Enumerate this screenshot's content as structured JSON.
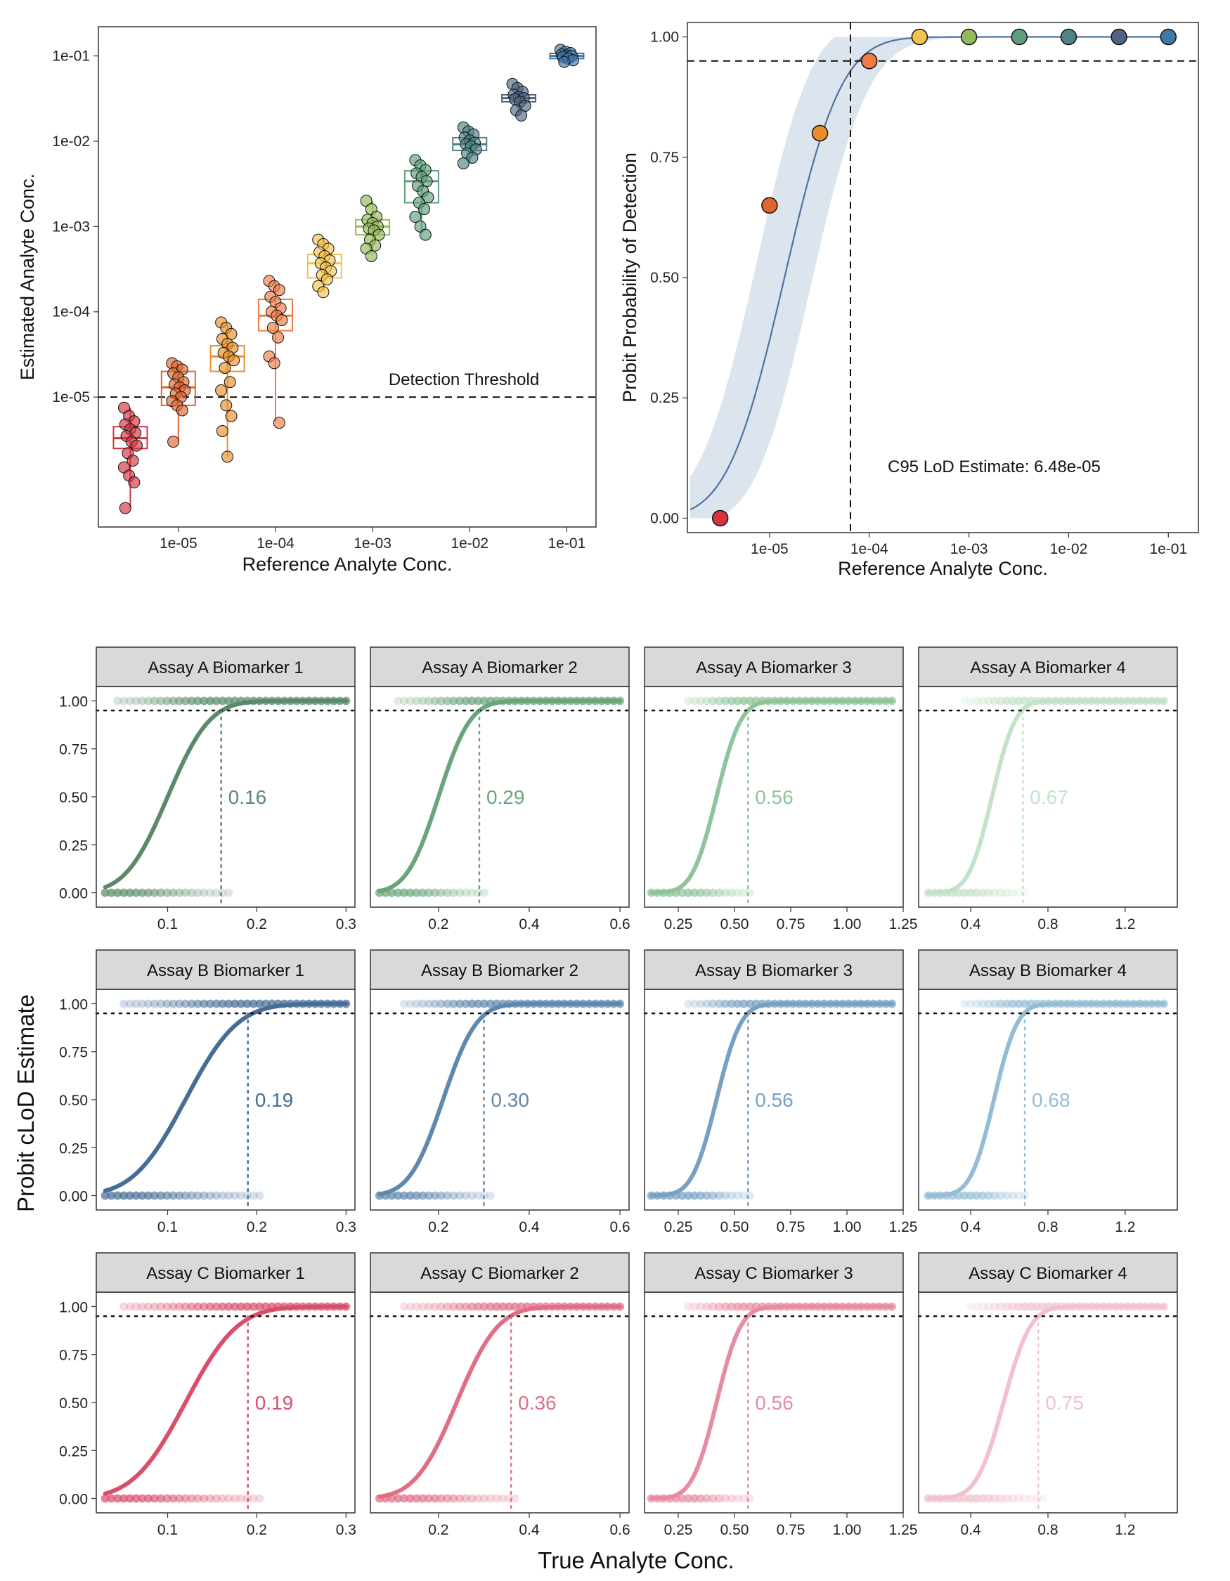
{
  "chart_data": [
    {
      "type": "box",
      "id": "panel-top-left",
      "xlabel": "Reference Analyte Conc.",
      "ylabel": "Estimated Analyte Conc.",
      "x_scale": "log10",
      "y_scale": "log10",
      "xlim": [
        1.5e-06,
        0.2
      ],
      "ylim": [
        3e-07,
        0.22
      ],
      "x_ticks": [
        "1e-05",
        "1e-04",
        "1e-03",
        "1e-02",
        "1e-01"
      ],
      "y_ticks": [
        "1e-05",
        "1e-04",
        "1e-03",
        "1e-02",
        "1e-01"
      ],
      "threshold": {
        "value": 1e-05,
        "label": "Detection Threshold"
      },
      "groups": [
        {
          "x": 3.2e-06,
          "q1": 2.5e-06,
          "median": 3.3e-06,
          "q3": 4.5e-06,
          "lo": 5e-07,
          "hi": 7.5e-06,
          "color": "#d4333f",
          "points": [
            7.5e-06,
            6e-06,
            5.2e-06,
            4.8e-06,
            4.2e-06,
            3.8e-06,
            3.5e-06,
            3e-06,
            2.7e-06,
            2.2e-06,
            1.8e-06,
            1.5e-06,
            1.2e-06,
            1e-06,
            5e-07
          ]
        },
        {
          "x": 1e-05,
          "q1": 8e-06,
          "median": 1.3e-05,
          "q3": 2e-05,
          "lo": 3e-06,
          "hi": 2.5e-05,
          "color": "#e06530",
          "points": [
            2.5e-05,
            2.3e-05,
            2.1e-05,
            1.9e-05,
            1.7e-05,
            1.5e-05,
            1.4e-05,
            1.3e-05,
            1.2e-05,
            1.1e-05,
            1e-05,
            9e-06,
            8e-06,
            7e-06,
            3e-06
          ]
        },
        {
          "x": 3.2e-05,
          "q1": 2e-05,
          "median": 3e-05,
          "q3": 4e-05,
          "lo": 2e-06,
          "hi": 7.5e-05,
          "color": "#e88f2a",
          "points": [
            7.5e-05,
            6.5e-05,
            5.5e-05,
            4.8e-05,
            4.2e-05,
            3.8e-05,
            3.3e-05,
            3e-05,
            2.7e-05,
            2.2e-05,
            1.5e-05,
            1.2e-05,
            8e-06,
            6e-06,
            4e-06,
            2e-06
          ]
        },
        {
          "x": 0.0001,
          "q1": 6e-05,
          "median": 9e-05,
          "q3": 0.00014,
          "lo": 5e-06,
          "hi": 0.00023,
          "color": "#ef7c45",
          "points": [
            0.00023,
            0.0002,
            0.00018,
            0.00015,
            0.00013,
            0.00011,
            0.0001,
            9e-05,
            8e-05,
            6.5e-05,
            5e-05,
            3e-05,
            2.5e-05,
            5e-06
          ]
        },
        {
          "x": 0.00032,
          "q1": 0.00025,
          "median": 0.00037,
          "q3": 0.00047,
          "lo": 0.00017,
          "hi": 0.0007,
          "color": "#f2c14e",
          "points": [
            0.0007,
            0.00062,
            0.00055,
            0.0005,
            0.00045,
            0.0004,
            0.00037,
            0.00033,
            0.0003,
            0.00027,
            0.00024,
            0.0002,
            0.00017
          ]
        },
        {
          "x": 0.001,
          "q1": 0.0008,
          "median": 0.001,
          "q3": 0.0012,
          "lo": 0.00045,
          "hi": 0.002,
          "color": "#93ba5a",
          "points": [
            0.002,
            0.0016,
            0.0013,
            0.0012,
            0.0011,
            0.001,
            0.00095,
            0.0009,
            0.0008,
            0.0007,
            0.0006,
            0.00055,
            0.00045
          ]
        },
        {
          "x": 0.0032,
          "q1": 0.0019,
          "median": 0.0034,
          "q3": 0.0045,
          "lo": 0.0008,
          "hi": 0.006,
          "color": "#5e9e7a",
          "points": [
            0.006,
            0.0052,
            0.0046,
            0.0042,
            0.0038,
            0.0034,
            0.003,
            0.0026,
            0.0022,
            0.0019,
            0.0016,
            0.0013,
            0.001,
            0.0008
          ]
        },
        {
          "x": 0.01,
          "q1": 0.0078,
          "median": 0.0092,
          "q3": 0.011,
          "lo": 0.0055,
          "hi": 0.0145,
          "color": "#4d8487",
          "points": [
            0.0145,
            0.013,
            0.012,
            0.011,
            0.0102,
            0.0096,
            0.0092,
            0.0087,
            0.008,
            0.0072,
            0.0064,
            0.0055
          ]
        },
        {
          "x": 0.032,
          "q1": 0.029,
          "median": 0.032,
          "q3": 0.035,
          "lo": 0.02,
          "hi": 0.047,
          "color": "#4f6585",
          "points": [
            0.047,
            0.042,
            0.038,
            0.035,
            0.033,
            0.032,
            0.031,
            0.029,
            0.026,
            0.023,
            0.02
          ]
        },
        {
          "x": 0.1,
          "q1": 0.093,
          "median": 0.1,
          "q3": 0.107,
          "lo": 0.085,
          "hi": 0.118,
          "color": "#3f77a8",
          "points": [
            0.118,
            0.112,
            0.108,
            0.104,
            0.101,
            0.1,
            0.097,
            0.093,
            0.089,
            0.085
          ]
        }
      ]
    },
    {
      "type": "line",
      "id": "panel-top-right",
      "xlabel": "Reference Analyte Conc.",
      "ylabel": "Probit Probability of Detection",
      "x_scale": "log10",
      "xlim": [
        1.5e-06,
        0.2
      ],
      "ylim": [
        -0.03,
        1.03
      ],
      "x_ticks": [
        "1e-05",
        "1e-04",
        "1e-03",
        "1e-02",
        "1e-01"
      ],
      "y_ticks": [
        "0.00",
        "0.25",
        "0.50",
        "0.75",
        "1.00"
      ],
      "hline": 0.95,
      "vline": 6.48e-05,
      "annotation": "C95 LoD Estimate: 6.48e-05",
      "curve": {
        "mu_log10": -4.85,
        "sigma_log10": 0.45,
        "band_log10": 0.14,
        "from": 1.6e-06,
        "to": 0.1,
        "color": "#4a74a2",
        "band_color": "#dce4ee"
      },
      "points": [
        {
          "x": 3.2e-06,
          "y": 0.0,
          "color": "#d4333f"
        },
        {
          "x": 1e-05,
          "y": 0.65,
          "color": "#e06530"
        },
        {
          "x": 3.2e-05,
          "y": 0.8,
          "color": "#e88f2a"
        },
        {
          "x": 0.0001,
          "y": 0.95,
          "color": "#ef7c45"
        },
        {
          "x": 0.00032,
          "y": 1.0,
          "color": "#f2c14e"
        },
        {
          "x": 0.001,
          "y": 1.0,
          "color": "#93ba5a"
        },
        {
          "x": 0.0032,
          "y": 1.0,
          "color": "#5e9e7a"
        },
        {
          "x": 0.01,
          "y": 1.0,
          "color": "#4d8487"
        },
        {
          "x": 0.032,
          "y": 1.0,
          "color": "#4f6585"
        },
        {
          "x": 0.1,
          "y": 1.0,
          "color": "#3f77a8"
        }
      ]
    },
    {
      "type": "facet-line",
      "id": "facet-grid",
      "xlabel": "True Analyte Conc.",
      "ylabel": "Probit cLoD Estimate",
      "y_ticks": [
        0,
        0.25,
        0.5,
        0.75,
        1.0
      ],
      "y_tick_labels": [
        "0.00",
        "0.25",
        "0.50",
        "0.75",
        "1.00"
      ],
      "hline": 0.95,
      "columns": [
        {
          "xlim": [
            0.02,
            0.31
          ],
          "ticks": [
            0.1,
            0.2,
            0.3
          ],
          "tick_labels": [
            "0.1",
            "0.2",
            "0.3"
          ]
        },
        {
          "xlim": [
            0.05,
            0.62
          ],
          "ticks": [
            0.2,
            0.4,
            0.6
          ],
          "tick_labels": [
            "0.2",
            "0.4",
            "0.6"
          ]
        },
        {
          "xlim": [
            0.1,
            1.25
          ],
          "ticks": [
            0.25,
            0.5,
            0.75,
            1.0,
            1.25
          ],
          "tick_labels": [
            "0.25",
            "0.50",
            "0.75",
            "1.00",
            "1.25"
          ]
        },
        {
          "xlim": [
            0.13,
            1.47
          ],
          "ticks": [
            0.4,
            0.8,
            1.2
          ],
          "tick_labels": [
            "0.4",
            "0.8",
            "1.2"
          ]
        }
      ],
      "panels": [
        {
          "title": "Assay A Biomarker 1",
          "row": 0,
          "col": 0,
          "lod": 0.16,
          "label": "0.16",
          "mu": 0.1,
          "sigma": 0.037,
          "xstart": 0.03,
          "xend": 0.3,
          "color": "#5a8a6a"
        },
        {
          "title": "Assay A Biomarker 2",
          "row": 0,
          "col": 1,
          "lod": 0.29,
          "label": "0.29",
          "mu": 0.2,
          "sigma": 0.055,
          "xstart": 0.07,
          "xend": 0.6,
          "color": "#6aa57a"
        },
        {
          "title": "Assay A Biomarker 3",
          "row": 0,
          "col": 2,
          "lod": 0.56,
          "label": "0.56",
          "mu": 0.42,
          "sigma": 0.085,
          "xstart": 0.13,
          "xend": 1.2,
          "color": "#8fc49a"
        },
        {
          "title": "Assay A Biomarker 4",
          "row": 0,
          "col": 3,
          "lod": 0.67,
          "label": "0.67",
          "mu": 0.51,
          "sigma": 0.095,
          "xstart": 0.18,
          "xend": 1.4,
          "color": "#c3e2c7"
        },
        {
          "title": "Assay B Biomarker 1",
          "row": 1,
          "col": 0,
          "lod": 0.19,
          "label": "0.19",
          "mu": 0.12,
          "sigma": 0.046,
          "xstart": 0.03,
          "xend": 0.3,
          "color": "#456d96"
        },
        {
          "title": "Assay B Biomarker 2",
          "row": 1,
          "col": 1,
          "lod": 0.3,
          "label": "0.30",
          "mu": 0.21,
          "sigma": 0.058,
          "xstart": 0.07,
          "xend": 0.6,
          "color": "#5f88ae"
        },
        {
          "title": "Assay B Biomarker 3",
          "row": 1,
          "col": 2,
          "lod": 0.56,
          "label": "0.56",
          "mu": 0.42,
          "sigma": 0.085,
          "xstart": 0.13,
          "xend": 1.2,
          "color": "#77a0c3"
        },
        {
          "title": "Assay B Biomarker 4",
          "row": 1,
          "col": 3,
          "lod": 0.68,
          "label": "0.68",
          "mu": 0.52,
          "sigma": 0.095,
          "xstart": 0.18,
          "xend": 1.4,
          "color": "#95bcd6"
        },
        {
          "title": "Assay C Biomarker 1",
          "row": 2,
          "col": 0,
          "lod": 0.19,
          "label": "0.19",
          "mu": 0.12,
          "sigma": 0.046,
          "xstart": 0.03,
          "xend": 0.3,
          "color": "#d94f6a"
        },
        {
          "title": "Assay C Biomarker 2",
          "row": 2,
          "col": 1,
          "lod": 0.36,
          "label": "0.36",
          "mu": 0.24,
          "sigma": 0.072,
          "xstart": 0.07,
          "xend": 0.6,
          "color": "#e06f86"
        },
        {
          "title": "Assay C Biomarker 3",
          "row": 2,
          "col": 2,
          "lod": 0.56,
          "label": "0.56",
          "mu": 0.42,
          "sigma": 0.085,
          "xstart": 0.13,
          "xend": 1.2,
          "color": "#e78ca0"
        },
        {
          "title": "Assay C Biomarker 4",
          "row": 2,
          "col": 3,
          "lod": 0.75,
          "label": "0.75",
          "mu": 0.57,
          "sigma": 0.11,
          "xstart": 0.18,
          "xend": 1.4,
          "color": "#f1c2cd"
        }
      ]
    }
  ]
}
